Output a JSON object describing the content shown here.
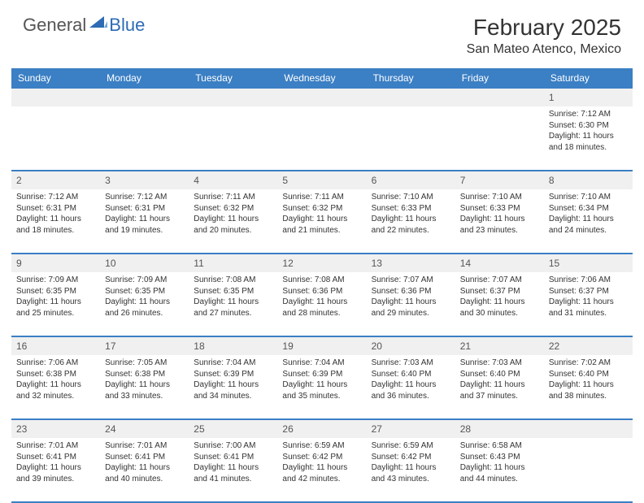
{
  "brand": {
    "general": "General",
    "blue": "Blue"
  },
  "title": "February 2025",
  "location": "San Mateo Atenco, Mexico",
  "colors": {
    "header_bg": "#3b7fc4",
    "header_text": "#ffffff",
    "daynum_bg": "#f0f0f0",
    "border": "#3b7fc4",
    "text": "#333333",
    "brand_blue": "#2d6bb5"
  },
  "dayNames": [
    "Sunday",
    "Monday",
    "Tuesday",
    "Wednesday",
    "Thursday",
    "Friday",
    "Saturday"
  ],
  "weeks": [
    [
      null,
      null,
      null,
      null,
      null,
      null,
      {
        "n": "1",
        "sunrise": "7:12 AM",
        "sunset": "6:30 PM",
        "daylight": "11 hours and 18 minutes."
      }
    ],
    [
      {
        "n": "2",
        "sunrise": "7:12 AM",
        "sunset": "6:31 PM",
        "daylight": "11 hours and 18 minutes."
      },
      {
        "n": "3",
        "sunrise": "7:12 AM",
        "sunset": "6:31 PM",
        "daylight": "11 hours and 19 minutes."
      },
      {
        "n": "4",
        "sunrise": "7:11 AM",
        "sunset": "6:32 PM",
        "daylight": "11 hours and 20 minutes."
      },
      {
        "n": "5",
        "sunrise": "7:11 AM",
        "sunset": "6:32 PM",
        "daylight": "11 hours and 21 minutes."
      },
      {
        "n": "6",
        "sunrise": "7:10 AM",
        "sunset": "6:33 PM",
        "daylight": "11 hours and 22 minutes."
      },
      {
        "n": "7",
        "sunrise": "7:10 AM",
        "sunset": "6:33 PM",
        "daylight": "11 hours and 23 minutes."
      },
      {
        "n": "8",
        "sunrise": "7:10 AM",
        "sunset": "6:34 PM",
        "daylight": "11 hours and 24 minutes."
      }
    ],
    [
      {
        "n": "9",
        "sunrise": "7:09 AM",
        "sunset": "6:35 PM",
        "daylight": "11 hours and 25 minutes."
      },
      {
        "n": "10",
        "sunrise": "7:09 AM",
        "sunset": "6:35 PM",
        "daylight": "11 hours and 26 minutes."
      },
      {
        "n": "11",
        "sunrise": "7:08 AM",
        "sunset": "6:35 PM",
        "daylight": "11 hours and 27 minutes."
      },
      {
        "n": "12",
        "sunrise": "7:08 AM",
        "sunset": "6:36 PM",
        "daylight": "11 hours and 28 minutes."
      },
      {
        "n": "13",
        "sunrise": "7:07 AM",
        "sunset": "6:36 PM",
        "daylight": "11 hours and 29 minutes."
      },
      {
        "n": "14",
        "sunrise": "7:07 AM",
        "sunset": "6:37 PM",
        "daylight": "11 hours and 30 minutes."
      },
      {
        "n": "15",
        "sunrise": "7:06 AM",
        "sunset": "6:37 PM",
        "daylight": "11 hours and 31 minutes."
      }
    ],
    [
      {
        "n": "16",
        "sunrise": "7:06 AM",
        "sunset": "6:38 PM",
        "daylight": "11 hours and 32 minutes."
      },
      {
        "n": "17",
        "sunrise": "7:05 AM",
        "sunset": "6:38 PM",
        "daylight": "11 hours and 33 minutes."
      },
      {
        "n": "18",
        "sunrise": "7:04 AM",
        "sunset": "6:39 PM",
        "daylight": "11 hours and 34 minutes."
      },
      {
        "n": "19",
        "sunrise": "7:04 AM",
        "sunset": "6:39 PM",
        "daylight": "11 hours and 35 minutes."
      },
      {
        "n": "20",
        "sunrise": "7:03 AM",
        "sunset": "6:40 PM",
        "daylight": "11 hours and 36 minutes."
      },
      {
        "n": "21",
        "sunrise": "7:03 AM",
        "sunset": "6:40 PM",
        "daylight": "11 hours and 37 minutes."
      },
      {
        "n": "22",
        "sunrise": "7:02 AM",
        "sunset": "6:40 PM",
        "daylight": "11 hours and 38 minutes."
      }
    ],
    [
      {
        "n": "23",
        "sunrise": "7:01 AM",
        "sunset": "6:41 PM",
        "daylight": "11 hours and 39 minutes."
      },
      {
        "n": "24",
        "sunrise": "7:01 AM",
        "sunset": "6:41 PM",
        "daylight": "11 hours and 40 minutes."
      },
      {
        "n": "25",
        "sunrise": "7:00 AM",
        "sunset": "6:41 PM",
        "daylight": "11 hours and 41 minutes."
      },
      {
        "n": "26",
        "sunrise": "6:59 AM",
        "sunset": "6:42 PM",
        "daylight": "11 hours and 42 minutes."
      },
      {
        "n": "27",
        "sunrise": "6:59 AM",
        "sunset": "6:42 PM",
        "daylight": "11 hours and 43 minutes."
      },
      {
        "n": "28",
        "sunrise": "6:58 AM",
        "sunset": "6:43 PM",
        "daylight": "11 hours and 44 minutes."
      },
      null
    ]
  ],
  "labels": {
    "sunrise": "Sunrise:",
    "sunset": "Sunset:",
    "daylight": "Daylight:"
  }
}
